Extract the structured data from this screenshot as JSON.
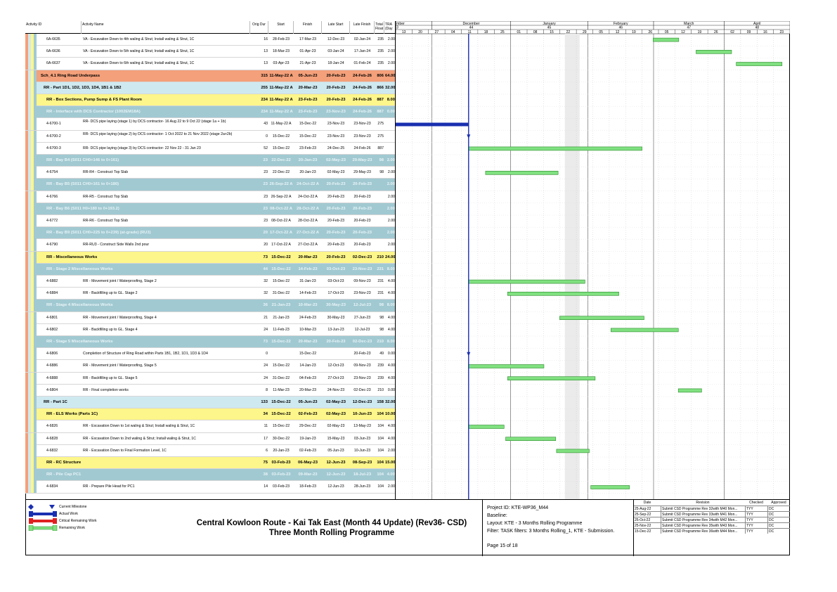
{
  "columns": {
    "activity_id": "Activity ID",
    "activity_name": "Activity Name",
    "orig_dur": "Orig Dur",
    "start": "Start",
    "finish": "Finish",
    "late_start": "Late Start",
    "late_finish": "Late Finish",
    "total_float": "Total Float",
    "tra": "TRA (Day"
  },
  "timeline": {
    "months": [
      "mber",
      "December",
      "January",
      "February",
      "March",
      "April"
    ],
    "weeks": [
      "3",
      "44",
      "45",
      "46",
      "47",
      "48"
    ],
    "days": [
      "13",
      "20",
      "27",
      "04",
      "11",
      "18",
      "25",
      "01",
      "08",
      "15",
      "22",
      "29",
      "05",
      "12",
      "19",
      "26",
      "05",
      "12",
      "19",
      "26",
      "02",
      "09",
      "16",
      "23"
    ]
  },
  "rows": [
    {
      "type": "white",
      "id": "6A-6635",
      "name": "VA - Excavation Down to 4th waling & Strut; Install waling & Strut, 1C",
      "dur": "16",
      "start": "28-Feb-23",
      "finish": "17-Mar-23",
      "ls": "12-Dec-23",
      "lf": "02-Jan-24",
      "tf": "235",
      "tra": "2.00"
    },
    {
      "type": "white",
      "id": "6A-6636",
      "name": "VA - Excavation Down to 5th waling & Strut; Install waling & Strut, 1C",
      "dur": "13",
      "start": "18-Mar-23",
      "finish": "01-Apr-23",
      "ls": "03-Jan-24",
      "lf": "17-Jan-24",
      "tf": "235",
      "tra": "2.00"
    },
    {
      "type": "white",
      "id": "6A-6637",
      "name": "VA - Excavation Down to 6th waling & Strut; Install waling & Strut, 1C",
      "dur": "13",
      "start": "03-Apr-23",
      "finish": "21-Apr-23",
      "ls": "18-Jan-24",
      "lf": "01-Feb-24",
      "tf": "235",
      "tra": "2.00"
    },
    {
      "type": "orange",
      "id": "Sch_4.1 Ring Road Underpass",
      "name": "",
      "dur": "315",
      "start": "11-May-22 A",
      "finish": "05-Jun-23",
      "ls": "20-Feb-23",
      "lf": "24-Feb-26",
      "tf": "806",
      "tra": "64.00"
    },
    {
      "type": "lightblue",
      "id": "RR - Part 1D1, 1D2, 1D3, 1D4, 1B1 & 1B2",
      "name": "",
      "dur": "255",
      "start": "11-May-22 A",
      "finish": "20-Mar-23",
      "ls": "20-Feb-23",
      "lf": "24-Feb-26",
      "tf": "866",
      "tra": "32.00"
    },
    {
      "type": "yellow",
      "id": "RR - Box Sections, Pump Sump & FS Plant Room",
      "name": "",
      "dur": "234",
      "start": "11-May-22 A",
      "finish": "23-Feb-23",
      "ls": "20-Feb-23",
      "lf": "24-Feb-26",
      "tf": "887",
      "tra": "8.00"
    },
    {
      "type": "teal",
      "id": "RR - Interface with DCS Contractor (1002EM18A)",
      "name": "",
      "dur": "234",
      "start": "11-May-22 A",
      "finish": "23-Feb-23",
      "ls": "23-Nov-23",
      "lf": "24-Feb-26",
      "tf": "887",
      "tra": "0.00"
    },
    {
      "type": "white",
      "id": "4-6700-1",
      "name": "RR- DCS pipe laying (stage 1) by DCS contractor- 16 Aug 22 to 9 Oct 22 (stage 1a + 1b)",
      "dur": "43",
      "start": "11-May-22 A",
      "finish": "15-Dec-22",
      "ls": "23-Nov-23",
      "lf": "23-Nov-23",
      "tf": "275",
      "tra": "",
      "wrap": true
    },
    {
      "type": "white",
      "id": "4-6700-2",
      "name": "RR- DCS pipe laying (stage 2) by DCS contractor- 1 Oct 2022 to 21 Nov 2022 (stage 2a+2b)",
      "dur": "0",
      "start": "15-Dec-22",
      "finish": "15-Dec-22",
      "ls": "23-Nov-23",
      "lf": "23-Nov-23",
      "tf": "275",
      "tra": "",
      "wrap": true
    },
    {
      "type": "white",
      "id": "4-6700-3",
      "name": "RR- DCS pipe laying (stage 3) by DCS contractor- 22 Nov 22 - 31 Jan 23",
      "dur": "52",
      "start": "15-Dec-22",
      "finish": "23-Feb-23",
      "ls": "24-Dec-25",
      "lf": "24-Feb-26",
      "tf": "887",
      "tra": ""
    },
    {
      "type": "teal",
      "id": "RR - Bay B4 (S011 CH0+146 to 0+161)",
      "name": "",
      "dur": "23",
      "start": "22-Dec-22",
      "finish": "20-Jan-23",
      "ls": "02-May-23",
      "lf": "29-May-23",
      "tf": "98",
      "tra": "2.00"
    },
    {
      "type": "white",
      "id": "4-6754",
      "name": "RR-R4 - Construct Top Slab",
      "dur": "23",
      "start": "22-Dec-22",
      "finish": "20-Jan-23",
      "ls": "02-May-23",
      "lf": "29-May-23",
      "tf": "98",
      "tra": "2.00"
    },
    {
      "type": "teal",
      "id": "RR - Bay B5 (S011 CH0+161 to 0+180)",
      "name": "",
      "dur": "23",
      "start": "26-Sep-22 A",
      "finish": "24-Oct-22 A",
      "ls": "20-Feb-23",
      "lf": "20-Feb-23",
      "tf": "",
      "tra": "2.00"
    },
    {
      "type": "white",
      "id": "4-6766",
      "name": "RR-R5 - Construct Top Slab",
      "dur": "23",
      "start": "26-Sep-22 A",
      "finish": "24-Oct-22 A",
      "ls": "20-Feb-23",
      "lf": "20-Feb-23",
      "tf": "",
      "tra": "2.00"
    },
    {
      "type": "teal",
      "id": "RR - Bay B6 (S011 H0+180 to 0+193.2)",
      "name": "",
      "dur": "23",
      "start": "08-Oct-22 A",
      "finish": "28-Oct-22 A",
      "ls": "20-Feb-23",
      "lf": "20-Feb-23",
      "tf": "",
      "tra": "2.00"
    },
    {
      "type": "white",
      "id": "4-6772",
      "name": "RR-R6 - Construct Top Slab",
      "dur": "23",
      "start": "08-Oct-22 A",
      "finish": "28-Oct-22 A",
      "ls": "20-Feb-23",
      "lf": "20-Feb-23",
      "tf": "",
      "tra": "2.00"
    },
    {
      "type": "teal",
      "id": "RR - Bay B9 (S011 CH0+225 to 0+239) (at-grade) (RU3)",
      "name": "",
      "dur": "20",
      "start": "17-Oct-22 A",
      "finish": "27-Oct-22 A",
      "ls": "20-Feb-23",
      "lf": "20-Feb-23",
      "tf": "",
      "tra": "2.00"
    },
    {
      "type": "white",
      "id": "4-6790",
      "name": "RR-RU3 - Construct Side Walls 2nd pour",
      "dur": "20",
      "start": "17-Oct-22 A",
      "finish": "27-Oct-22 A",
      "ls": "20-Feb-23",
      "lf": "20-Feb-23",
      "tf": "",
      "tra": "2.00"
    },
    {
      "type": "yellow",
      "id": "RR - Miscellaneous Works",
      "name": "",
      "dur": "73",
      "start": "15-Dec-22",
      "finish": "20-Mar-23",
      "ls": "20-Feb-23",
      "lf": "02-Dec-23",
      "tf": "210",
      "tra": "24.00"
    },
    {
      "type": "teal",
      "id": "RR - Stage 2 Miscellaneous Works",
      "name": "",
      "dur": "44",
      "start": "15-Dec-22",
      "finish": "14-Feb-23",
      "ls": "03-Oct-23",
      "lf": "23-Nov-23",
      "tf": "231",
      "tra": "8.00"
    },
    {
      "type": "white",
      "id": "4-6882",
      "name": "RR - Movement joint / Waterproofing, Stage 2",
      "dur": "32",
      "start": "15-Dec-22",
      "finish": "31-Jan-23",
      "ls": "03-Oct-23",
      "lf": "09-Nov-23",
      "tf": "231",
      "tra": "4.00"
    },
    {
      "type": "white",
      "id": "4-6884",
      "name": "RR - Backfilling up to GL. Stage 2",
      "dur": "32",
      "start": "31-Dec-22",
      "finish": "14-Feb-23",
      "ls": "17-Oct-23",
      "lf": "23-Nov-23",
      "tf": "231",
      "tra": "4.00"
    },
    {
      "type": "teal",
      "id": "RR - Stage 4 Miscellaneous Works",
      "name": "",
      "dur": "36",
      "start": "21-Jan-23",
      "finish": "10-Mar-23",
      "ls": "30-May-23",
      "lf": "12-Jul-23",
      "tf": "98",
      "tra": "8.00"
    },
    {
      "type": "white",
      "id": "4-6801",
      "name": "RR - Movement joint / Waterproofing, Stage 4",
      "dur": "21",
      "start": "21-Jan-23",
      "finish": "24-Feb-23",
      "ls": "30-May-23",
      "lf": "27-Jun-23",
      "tf": "98",
      "tra": "4.00"
    },
    {
      "type": "white",
      "id": "4-6802",
      "name": "RR - Backfilling up to GL. Stage 4",
      "dur": "24",
      "start": "11-Feb-23",
      "finish": "10-Mar-23",
      "ls": "13-Jun-23",
      "lf": "12-Jul-23",
      "tf": "98",
      "tra": "4.00"
    },
    {
      "type": "teal",
      "id": "RR - Stage 5 Miscellaneous Works",
      "name": "",
      "dur": "73",
      "start": "15-Dec-22",
      "finish": "20-Mar-23",
      "ls": "20-Feb-23",
      "lf": "02-Dec-23",
      "tf": "210",
      "tra": "8.00"
    },
    {
      "type": "white",
      "id": "4-6806",
      "name": "Completion of Structure of Ring Road within Parts 1B1, 1B2, 1D1, 1D3 & 1D4",
      "dur": "0",
      "start": "",
      "finish": "15-Dec-22",
      "ls": "",
      "lf": "20-Feb-23",
      "tf": "49",
      "tra": "0.00"
    },
    {
      "type": "white",
      "id": "4-6886",
      "name": "RR - Movement joint / Waterproofing, Stage 5",
      "dur": "24",
      "start": "15-Dec-22",
      "finish": "14-Jan-23",
      "ls": "12-Oct-23",
      "lf": "09-Nov-23",
      "tf": "239",
      "tra": "4.00"
    },
    {
      "type": "white",
      "id": "4-6888",
      "name": "RR - Backfilling up to GL. Stage 5",
      "dur": "24",
      "start": "31-Dec-22",
      "finish": "04-Feb-23",
      "ls": "27-Oct-23",
      "lf": "23-Nov-23",
      "tf": "239",
      "tra": "4.00"
    },
    {
      "type": "white",
      "id": "4-6804",
      "name": "RR - Final completion works",
      "dur": "8",
      "start": "11-Mar-23",
      "finish": "20-Mar-23",
      "ls": "24-Nov-23",
      "lf": "02-Dec-23",
      "tf": "210",
      "tra": "0.00"
    },
    {
      "type": "lightblue",
      "id": "RR - Part 1C",
      "name": "",
      "dur": "133",
      "start": "15-Dec-22",
      "finish": "05-Jun-23",
      "ls": "02-May-23",
      "lf": "12-Dec-23",
      "tf": "158",
      "tra": "32.00"
    },
    {
      "type": "yellow",
      "id": "RR - ELS Works (Parts 1C)",
      "name": "",
      "dur": "34",
      "start": "15-Dec-22",
      "finish": "02-Feb-23",
      "ls": "02-May-23",
      "lf": "10-Jun-23",
      "tf": "104",
      "tra": "10.00"
    },
    {
      "type": "white",
      "id": "4-6826",
      "name": "RR - Excavation Down to 1st waling & Strut; Install waling & Strut, 1C",
      "dur": "11",
      "start": "15-Dec-22",
      "finish": "29-Dec-22",
      "ls": "02-May-23",
      "lf": "13-May-23",
      "tf": "104",
      "tra": "4.00"
    },
    {
      "type": "white",
      "id": "4-6828",
      "name": "RR - Excavation Down to 2nd waling & Strut; Install waling & Strut, 1C",
      "dur": "17",
      "start": "30-Dec-22",
      "finish": "19-Jan-23",
      "ls": "15-May-23",
      "lf": "03-Jun-23",
      "tf": "104",
      "tra": "4.00"
    },
    {
      "type": "white",
      "id": "4-6832",
      "name": "RR - Excavation Down to Final Formation Level, 1C",
      "dur": "6",
      "start": "20-Jan-23",
      "finish": "02-Feb-23",
      "ls": "05-Jun-23",
      "lf": "10-Jun-23",
      "tf": "104",
      "tra": "2.00"
    },
    {
      "type": "yellow",
      "id": "RR - RC Structure",
      "name": "",
      "dur": "75",
      "start": "03-Feb-23",
      "finish": "06-May-23",
      "ls": "12-Jun-23",
      "lf": "08-Sep-23",
      "tf": "104",
      "tra": "15.00"
    },
    {
      "type": "teal",
      "id": "RR - Pile Cap PC1",
      "name": "",
      "dur": "38",
      "start": "03-Feb-23",
      "finish": "09-Mar-23",
      "ls": "12-Jun-23",
      "lf": "18-Jul-23",
      "tf": "104",
      "tra": "4.00"
    },
    {
      "type": "white",
      "id": "4-6834",
      "name": "RR - Prepare Pile Head for PC1",
      "dur": "14",
      "start": "03-Feb-23",
      "finish": "18-Feb-23",
      "ls": "12-Jun-23",
      "lf": "28-Jun-23",
      "tf": "104",
      "tra": "2.00"
    }
  ],
  "bars": [
    {
      "row": 0,
      "kind": "remaining",
      "from": 0.653,
      "to": 0.718
    },
    {
      "row": 1,
      "kind": "remaining",
      "from": 0.762,
      "to": 0.852
    },
    {
      "row": 2,
      "kind": "remaining",
      "from": 0.864,
      "to": 0.98
    },
    {
      "row": 7,
      "kind": "actual",
      "from": 0.0,
      "to": 0.185
    },
    {
      "row": 8,
      "kind": "milestone",
      "from": 0.185,
      "to": 0.185
    },
    {
      "row": 9,
      "kind": "remaining",
      "from": 0.185,
      "to": 0.625
    },
    {
      "row": 11,
      "kind": "remaining",
      "from": 0.228,
      "to": 0.412
    },
    {
      "row": 20,
      "kind": "remaining",
      "from": 0.185,
      "to": 0.48
    },
    {
      "row": 21,
      "kind": "remaining",
      "from": 0.284,
      "to": 0.566
    },
    {
      "row": 23,
      "kind": "remaining",
      "from": 0.416,
      "to": 0.63
    },
    {
      "row": 24,
      "kind": "remaining",
      "from": 0.546,
      "to": 0.717
    },
    {
      "row": 26,
      "kind": "milestone",
      "from": 0.185,
      "to": 0.185
    },
    {
      "row": 27,
      "kind": "remaining",
      "from": 0.185,
      "to": 0.376
    },
    {
      "row": 28,
      "kind": "remaining",
      "from": 0.284,
      "to": 0.506
    },
    {
      "row": 29,
      "kind": "remaining",
      "from": 0.717,
      "to": 0.776
    },
    {
      "row": 32,
      "kind": "remaining",
      "from": 0.185,
      "to": 0.275
    },
    {
      "row": 33,
      "kind": "remaining",
      "from": 0.279,
      "to": 0.406
    },
    {
      "row": 34,
      "kind": "remaining",
      "from": 0.408,
      "to": 0.491
    },
    {
      "row": 37,
      "kind": "remaining",
      "from": 0.495,
      "to": 0.593
    }
  ],
  "data_date": 0.185,
  "legend": {
    "current_milestone": "Current Milestone",
    "actual_work": "Actual Work",
    "critical_remaining": "Critical Remaining Work",
    "remaining_work": "Remaining Work"
  },
  "footer": {
    "title_line1": "Central Kowloon Route - Kai Tak East (Month 44 Update) (Rev36- CSD)",
    "title_line2": "Three Month Rolling Programme",
    "project_id": "Project ID: KTE-WP36_M44",
    "baseline": "Baseline:",
    "layout": "Layout: KTE - 3 Months Rolling Programme",
    "filter": "Filter: TASK filters: 3 Months Rolling_1, KTE - Submission.",
    "page": "Page 15 of 18"
  },
  "revisions": {
    "headers": [
      "Date",
      "Revision",
      "Checked",
      "Approved"
    ],
    "rows": [
      [
        "25-Aug-22",
        "Submit CSD Programme Rev 32with M40 Mon...",
        "TYY",
        "DC"
      ],
      [
        "25-Sep-22",
        "Submit CSD Programme Rev 33with M41 Mon...",
        "TYY",
        "DC"
      ],
      [
        "25-Oct-22",
        "Submit CSD Programme Rev 34with M42 Mon...",
        "TYY",
        "DC"
      ],
      [
        "25-Nov-22",
        "Submit CSD Programme Rev 35with M43 Mon...",
        "TYY",
        "DC"
      ],
      [
        "15-Dec-22",
        "Submit CSD Programme Rev 36with M44 Mon...",
        "TYY",
        "DC"
      ]
    ]
  },
  "colors": {
    "orange": "#f4a07a",
    "lightblue": "#cfe9f0",
    "yellow": "#fdf68a",
    "teal": "#a1c9d2",
    "remaining_bar": "#7fe07f",
    "actual_bar": "#1a2fb0",
    "data_date_line": "#1a2fb0"
  }
}
